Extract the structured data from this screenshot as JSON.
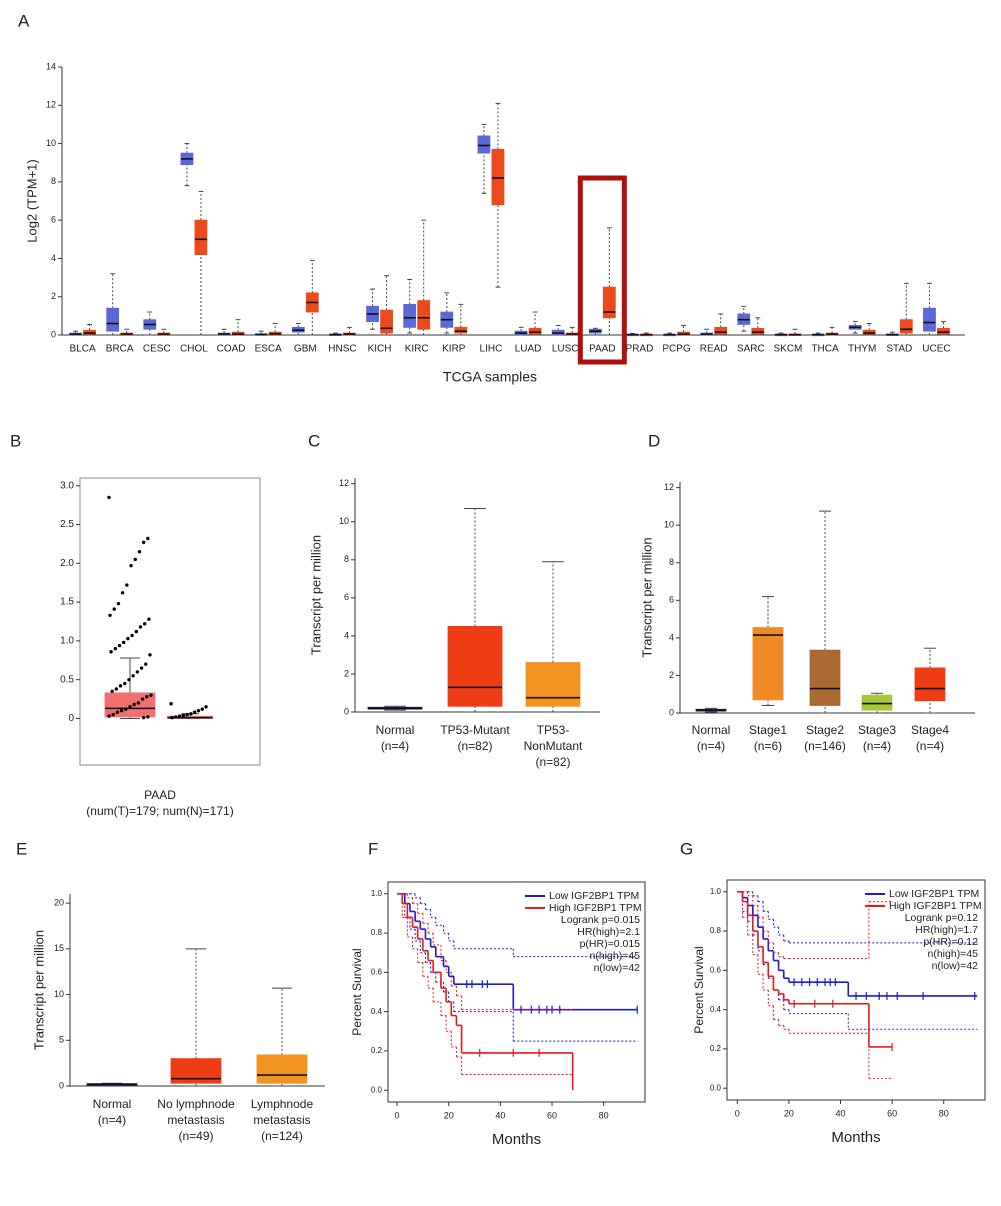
{
  "chart_data": [
    {
      "type": "box",
      "panel": "A",
      "ylabel": "Log2 (TPM+1)",
      "xlabel": "TCGA samples",
      "categories": [
        "BLCA",
        "BRCA",
        "CESC",
        "CHOL",
        "COAD",
        "ESCA",
        "GBM",
        "HNSC",
        "KICH",
        "KIRC",
        "KIRP",
        "LIHC",
        "LUAD",
        "LUSC",
        "PAAD",
        "PRAD",
        "PCPG",
        "READ",
        "SARC",
        "SKCM",
        "THCA",
        "THYM",
        "STAD",
        "UCEC"
      ],
      "ylim": [
        0,
        14
      ],
      "yticks": [
        0,
        2,
        4,
        6,
        8,
        10,
        12,
        14
      ],
      "series": [
        {
          "color": "#5a68d8",
          "values": [
            [
              0,
              0.02,
              0.05,
              0.1,
              0.2
            ],
            [
              0,
              0.2,
              0.6,
              1.4,
              3.2
            ],
            [
              0,
              0.3,
              0.55,
              0.8,
              1.2
            ],
            [
              7.8,
              8.9,
              9.2,
              9.5,
              10
            ],
            [
              0,
              0.02,
              0.05,
              0.1,
              0.3
            ],
            [
              0,
              0.01,
              0.03,
              0.06,
              0.2
            ],
            [
              0,
              0.15,
              0.25,
              0.4,
              0.6
            ],
            [
              0,
              0.01,
              0.02,
              0.05,
              0.1
            ],
            [
              0.3,
              0.7,
              1.1,
              1.5,
              2.4
            ],
            [
              0.1,
              0.4,
              0.9,
              1.6,
              2.9
            ],
            [
              0.1,
              0.4,
              0.8,
              1.2,
              2.2
            ],
            [
              7.4,
              9.5,
              9.9,
              10.4,
              11
            ],
            [
              0,
              0.02,
              0.1,
              0.2,
              0.4
            ],
            [
              0,
              0.02,
              0.1,
              0.25,
              0.5
            ],
            [
              0,
              0.1,
              0.2,
              0.3,
              0.35
            ],
            [
              0,
              0.01,
              0.02,
              0.04,
              0.08
            ],
            [
              0,
              0.01,
              0.02,
              0.04,
              0.1
            ],
            [
              0,
              0.02,
              0.05,
              0.1,
              0.3
            ],
            [
              0.2,
              0.55,
              0.8,
              1.1,
              1.5
            ],
            [
              0,
              0.01,
              0.02,
              0.04,
              0.1
            ],
            [
              0,
              0.01,
              0.02,
              0.04,
              0.1
            ],
            [
              0.1,
              0.3,
              0.4,
              0.5,
              0.7
            ],
            [
              0,
              0.01,
              0.02,
              0.05,
              0.15
            ],
            [
              0,
              0.2,
              0.65,
              1.4,
              2.7
            ]
          ]
        },
        {
          "color": "#ea4a1c",
          "values": [
            [
              0,
              0.05,
              0.1,
              0.25,
              0.55
            ],
            [
              0,
              0.02,
              0.05,
              0.1,
              0.3
            ],
            [
              0,
              0.02,
              0.05,
              0.1,
              0.3
            ],
            [
              0,
              4.2,
              5,
              6,
              7.5
            ],
            [
              0,
              0.02,
              0.05,
              0.15,
              0.8
            ],
            [
              0,
              0.02,
              0.06,
              0.15,
              0.6
            ],
            [
              0,
              1.2,
              1.7,
              2.2,
              3.9
            ],
            [
              0,
              0.02,
              0.05,
              0.1,
              0.4
            ],
            [
              0,
              0.1,
              0.35,
              1.3,
              3.1
            ],
            [
              0,
              0.3,
              0.9,
              1.8,
              6
            ],
            [
              0,
              0.1,
              0.2,
              0.4,
              1.6
            ],
            [
              2.5,
              6.8,
              8.2,
              9.7,
              12.1
            ],
            [
              0,
              0.05,
              0.15,
              0.35,
              1.2
            ],
            [
              0,
              0.02,
              0.05,
              0.1,
              0.4
            ],
            [
              0,
              0.9,
              1.2,
              2.5,
              5.6
            ],
            [
              0,
              0.01,
              0.02,
              0.04,
              0.1
            ],
            [
              0,
              0.02,
              0.05,
              0.15,
              0.5
            ],
            [
              0,
              0.05,
              0.15,
              0.4,
              1.1
            ],
            [
              0,
              0.05,
              0.15,
              0.35,
              0.9
            ],
            [
              0,
              0.01,
              0.02,
              0.05,
              0.3
            ],
            [
              0,
              0.02,
              0.05,
              0.1,
              0.4
            ],
            [
              0,
              0.05,
              0.1,
              0.25,
              0.6
            ],
            [
              0,
              0.1,
              0.3,
              0.8,
              2.7
            ],
            [
              0,
              0.05,
              0.15,
              0.35,
              0.7
            ]
          ]
        }
      ]
    },
    {
      "type": "box",
      "panel": "B",
      "xlabel": "(num(T)=179; num(N)=171)",
      "categories": [
        "PAAD"
      ],
      "ylim": [
        -0.6,
        3.1
      ],
      "yticks": [
        0,
        0.5,
        {
          "value": 1,
          "label": "1.0"
        },
        1.5,
        {
          "value": 2,
          "label": "2.0"
        },
        2.5,
        {
          "value": 3,
          "label": "3.0"
        }
      ],
      "series": [
        {
          "color": "#f07070",
          "values": [
            [
              0,
              0.02,
              0.13,
              0.33,
              0.78
            ]
          ],
          "points": [
            2.85,
            2.32,
            2.27,
            2.15,
            2.05,
            1.97,
            1.72,
            1.62,
            1.48,
            1.41,
            1.33,
            1.28,
            1.22,
            1.18,
            1.12,
            1.07,
            1.03,
            0.98,
            0.94,
            0.9,
            0.86,
            0.82,
            0.7,
            0.65,
            0.6,
            0.55,
            0.5,
            0.45,
            0.42,
            0.38,
            0.35,
            0.3,
            0.28,
            0.25,
            0.2,
            0.18,
            0.15,
            0.12,
            0.1,
            0.08,
            0.05,
            0.03,
            0.02,
            0.01
          ]
        },
        {
          "color": "#f07070",
          "values": [
            [
              0,
              0,
              0.01,
              0.03,
              0.06
            ]
          ],
          "points": [
            0.19,
            0.15,
            0.12,
            0.1,
            0.08,
            0.06,
            0.05,
            0.04,
            0.03,
            0.02,
            0.01
          ]
        }
      ]
    },
    {
      "type": "box",
      "panel": "C",
      "ylabel": "Transcript per million",
      "categories": [
        [
          "Normal",
          "(n=4)"
        ],
        [
          "TP53-Mutant",
          "(n=82)"
        ],
        [
          "TP53-",
          "NonMutant",
          "(n=82)"
        ]
      ],
      "ylim": [
        0,
        12.3
      ],
      "yticks": [
        0,
        2,
        4,
        6,
        8,
        10,
        12
      ],
      "colors": [
        "#1f2a6b",
        "#ee3d14",
        "#f29320"
      ],
      "values": [
        [
          0.1,
          0.15,
          0.2,
          0.25,
          0.3
        ],
        [
          0,
          0.3,
          1.3,
          4.5,
          10.7
        ],
        [
          0,
          0.3,
          0.75,
          2.6,
          7.9
        ]
      ]
    },
    {
      "type": "box",
      "panel": "D",
      "ylabel": "Transcript per million",
      "categories": [
        [
          "Normal",
          "(n=4)"
        ],
        [
          "Stage1",
          "(n=6)"
        ],
        [
          "Stage2",
          "(n=146)"
        ],
        [
          "Stage3",
          "(n=4)"
        ],
        [
          "Stage4",
          "(n=4)"
        ]
      ],
      "ylim": [
        0,
        12.3
      ],
      "yticks": [
        0,
        2,
        4,
        6,
        8,
        10,
        12
      ],
      "colors": [
        "#1f2a6b",
        "#f08a22",
        "#a86a32",
        "#a7c838",
        "#ee3d14"
      ],
      "values": [
        [
          0.05,
          0.1,
          0.15,
          0.2,
          0.25
        ],
        [
          0.4,
          0.7,
          4.15,
          4.55,
          6.2
        ],
        [
          0,
          0.4,
          1.3,
          3.35,
          10.75
        ],
        [
          0,
          0.15,
          0.5,
          0.95,
          1.05
        ],
        [
          0,
          0.65,
          1.3,
          2.4,
          3.45
        ]
      ]
    },
    {
      "type": "box",
      "panel": "E",
      "ylabel": "Transcript per million",
      "categories": [
        [
          "Normal",
          "(n=4)"
        ],
        [
          "No lymphnode",
          "metastasis",
          "(n=49)"
        ],
        [
          "Lymphnode",
          "metastasis",
          "(n=124)"
        ]
      ],
      "ylim": [
        0,
        21
      ],
      "yticks": [
        0,
        5,
        10,
        15,
        20
      ],
      "colors": [
        "#1f2a6b",
        "#ee3d14",
        "#f29320"
      ],
      "values": [
        [
          0.1,
          0.15,
          0.2,
          0.25,
          0.3
        ],
        [
          0,
          0.3,
          0.8,
          3,
          15
        ],
        [
          0,
          0.3,
          1.2,
          3.4,
          10.7
        ]
      ]
    },
    {
      "type": "survival",
      "panel": "F",
      "xlabel": "Months",
      "ylabel": "Percent Survival",
      "xlim": [
        -3.5,
        96
      ],
      "xticks": [
        0,
        20,
        40,
        60,
        80
      ],
      "ylim": [
        -0.06,
        1.06
      ],
      "yticks": [
        {
          "value": 0,
          "label": "0.0"
        },
        0.2,
        0.4,
        0.6,
        0.8,
        {
          "value": 1,
          "label": "1.0"
        }
      ],
      "annotations": [
        "Logrank p=0.015",
        "HR(high)=2.1",
        "p(HR)=0.015",
        "n(high)=45",
        "n(low)=42"
      ],
      "series": [
        {
          "name": "Low IGF2BP1 TPM",
          "color": "#1a1ad8",
          "x": [
            0,
            3,
            5,
            7,
            9,
            11,
            13,
            15,
            18,
            20,
            22,
            45,
            93
          ],
          "values": [
            1,
            0.95,
            0.91,
            0.86,
            0.82,
            0.77,
            0.73,
            0.68,
            0.63,
            0.58,
            0.54,
            0.41,
            0.41
          ],
          "ci_upper": [
            1,
            1,
            1,
            0.98,
            0.95,
            0.92,
            0.88,
            0.84,
            0.8,
            0.76,
            0.72,
            0.68,
            0.68
          ],
          "ci_lower": [
            1,
            0.88,
            0.82,
            0.76,
            0.7,
            0.65,
            0.6,
            0.55,
            0.5,
            0.45,
            0.4,
            0.25,
            0.25
          ],
          "censored": [
            27,
            29,
            33,
            35,
            48,
            52,
            55,
            58,
            60,
            63,
            93
          ]
        },
        {
          "name": "High IGF2BP1 TPM",
          "color": "#e81818",
          "x": [
            0,
            2,
            4,
            6,
            8,
            10,
            12,
            14,
            17,
            19,
            21,
            23,
            25,
            68
          ],
          "values": [
            1,
            0.95,
            0.88,
            0.83,
            0.77,
            0.71,
            0.66,
            0.6,
            0.52,
            0.45,
            0.38,
            0.33,
            0.19,
            0
          ],
          "ci_upper": [
            1,
            1,
            0.98,
            0.95,
            0.9,
            0.85,
            0.8,
            0.74,
            0.66,
            0.6,
            0.53,
            0.48,
            0.41,
            0.41
          ],
          "ci_lower": [
            1,
            0.88,
            0.78,
            0.72,
            0.65,
            0.58,
            0.52,
            0.45,
            0.38,
            0.3,
            0.22,
            0.17,
            0.08,
            0.08
          ],
          "censored": [
            32,
            45,
            55
          ]
        }
      ]
    },
    {
      "type": "survival",
      "panel": "G",
      "xlabel": "Months",
      "ylabel": "Percent Survival",
      "xlim": [
        -4,
        96
      ],
      "xticks": [
        0,
        20,
        40,
        60,
        80
      ],
      "ylim": [
        -0.06,
        1.06
      ],
      "yticks": [
        {
          "value": 0,
          "label": "0.0"
        },
        0.2,
        0.4,
        0.6,
        0.8,
        {
          "value": 1,
          "label": "1.0"
        }
      ],
      "annotations": [
        "Logrank p=0.12",
        "HR(high)=1.7",
        "p(HR)=0.12",
        "n(high)=45",
        "n(low)=42"
      ],
      "series": [
        {
          "name": "Low IGF2BP1 TPM",
          "color": "#1a1ad8",
          "x": [
            0,
            2,
            4,
            6,
            8,
            10,
            12,
            14,
            16,
            18,
            20,
            43,
            93
          ],
          "values": [
            1,
            0.97,
            0.93,
            0.88,
            0.82,
            0.76,
            0.7,
            0.65,
            0.6,
            0.56,
            0.54,
            0.47,
            0.47
          ],
          "ci_upper": [
            1,
            1,
            1,
            0.98,
            0.95,
            0.9,
            0.86,
            0.82,
            0.78,
            0.75,
            0.74,
            0.74,
            0.74
          ],
          "ci_lower": [
            1,
            0.9,
            0.85,
            0.78,
            0.7,
            0.63,
            0.56,
            0.5,
            0.45,
            0.4,
            0.38,
            0.3,
            0.3
          ],
          "censored": [
            22,
            25,
            28,
            31,
            34,
            36,
            38,
            46,
            50,
            55,
            58,
            62,
            72,
            92
          ]
        },
        {
          "name": "High IGF2BP1 TPM",
          "color": "#e81818",
          "x": [
            0,
            2,
            4,
            6,
            8,
            10,
            12,
            14,
            16,
            18,
            20,
            51,
            60
          ],
          "values": [
            1,
            0.95,
            0.88,
            0.8,
            0.72,
            0.64,
            0.57,
            0.5,
            0.48,
            0.45,
            0.43,
            0.21,
            0.21
          ],
          "ci_upper": [
            1,
            1,
            0.98,
            0.93,
            0.87,
            0.8,
            0.74,
            0.69,
            0.67,
            0.66,
            0.66,
            0.95,
            0.95
          ],
          "ci_lower": [
            1,
            0.87,
            0.78,
            0.68,
            0.58,
            0.5,
            0.42,
            0.35,
            0.32,
            0.3,
            0.28,
            0.05,
            0.05
          ],
          "censored": [
            22,
            30,
            37,
            60
          ]
        }
      ]
    }
  ]
}
